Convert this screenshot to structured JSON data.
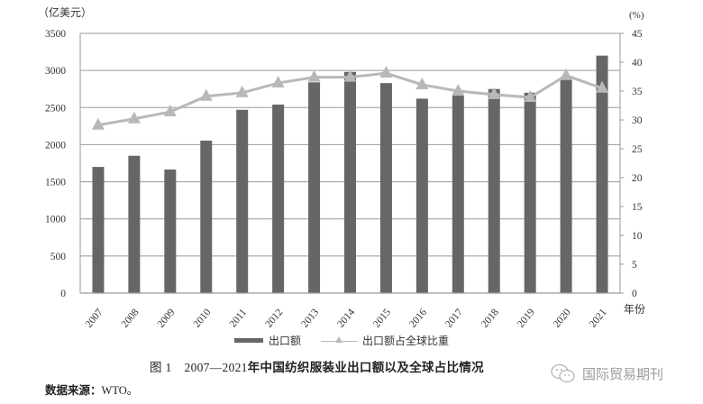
{
  "chart_data": {
    "type": "bar",
    "title": "图 1　2007—2021 年中国纺织服装业出口额以及全球占比情况",
    "figure_number": "图 1",
    "title_range": "2007—2021",
    "title_text": "年中国纺织服装业出口额以及全球占比情况",
    "xlabel": "年份",
    "ylabel": "（亿美元）",
    "y2label": "(%)",
    "ylim": [
      0,
      3500
    ],
    "y2lim": [
      0,
      45
    ],
    "yticks": [
      0,
      500,
      1000,
      1500,
      2000,
      2500,
      3000,
      3500
    ],
    "y2ticks": [
      0,
      5,
      10,
      15,
      20,
      25,
      30,
      35,
      40,
      45
    ],
    "grid": true,
    "legend_position": "bottom",
    "categories": [
      "2007",
      "2008",
      "2009",
      "2010",
      "2011",
      "2012",
      "2013",
      "2014",
      "2015",
      "2016",
      "2017",
      "2018",
      "2019",
      "2020",
      "2021"
    ],
    "series": [
      {
        "name": "出口额",
        "type": "bar",
        "axis": "left",
        "color": "#666666",
        "values": [
          1700,
          1850,
          1665,
          2055,
          2470,
          2540,
          2840,
          2980,
          2830,
          2620,
          2660,
          2750,
          2700,
          2910,
          3200
        ]
      },
      {
        "name": "出口额占全球比重",
        "type": "line",
        "axis": "right",
        "marker": "triangle",
        "color": "#b8b8b8",
        "values": [
          29.1,
          30.2,
          31.4,
          34.1,
          34.7,
          36.4,
          37.4,
          37.4,
          38.1,
          36.1,
          35.0,
          34.4,
          33.9,
          37.7,
          35.5
        ]
      }
    ]
  },
  "caption": {
    "source_label": "数据来源：",
    "source_value": "WTO。"
  },
  "watermark": {
    "text": "国际贸易期刊",
    "icon": "wechat-icon"
  }
}
